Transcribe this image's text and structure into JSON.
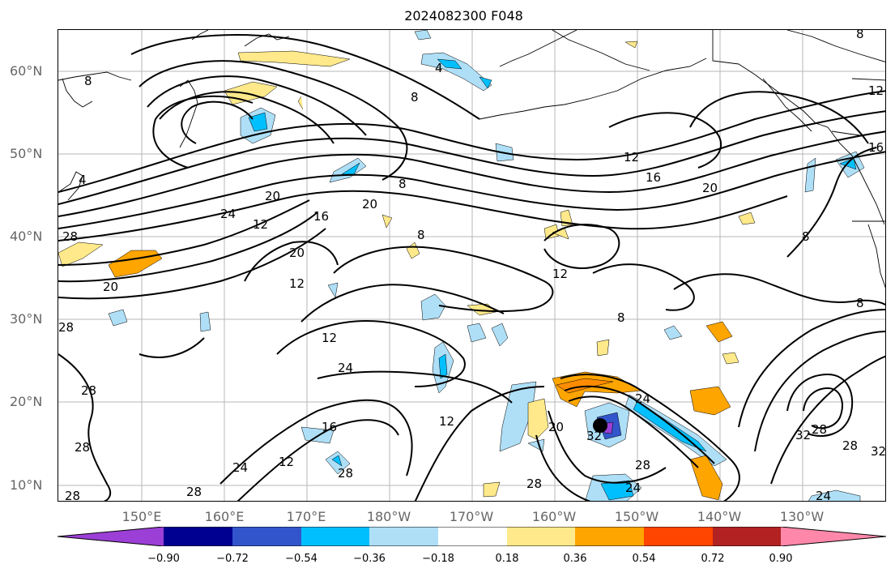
{
  "title": "2024082300 F048",
  "lat_labels": [
    "60°N",
    "50°N",
    "40°N",
    "30°N",
    "20°N",
    "10°N"
  ],
  "lon_labels": [
    "150°E",
    "160°E",
    "170°E",
    "180°W",
    "170°W",
    "160°W",
    "150°W",
    "140°W",
    "130°W"
  ],
  "colorbar": {
    "labels": [
      "−0.90",
      "−0.72",
      "−0.54",
      "−0.36",
      "−0.18",
      "0.18",
      "0.36",
      "0.54",
      "0.72",
      "0.90"
    ],
    "colors": [
      "#9b3fd6",
      "#000090",
      "#3355cc",
      "#00bfff",
      "#aedff7",
      "#ffffff",
      "#ffe98a",
      "#ffa500",
      "#ff4500",
      "#b22222",
      "#ff88aa"
    ]
  },
  "contour_labels": [
    "8",
    "4",
    "12",
    "16",
    "20",
    "24",
    "28",
    "32"
  ],
  "storm_marker": "tropical-cyclone-center"
}
